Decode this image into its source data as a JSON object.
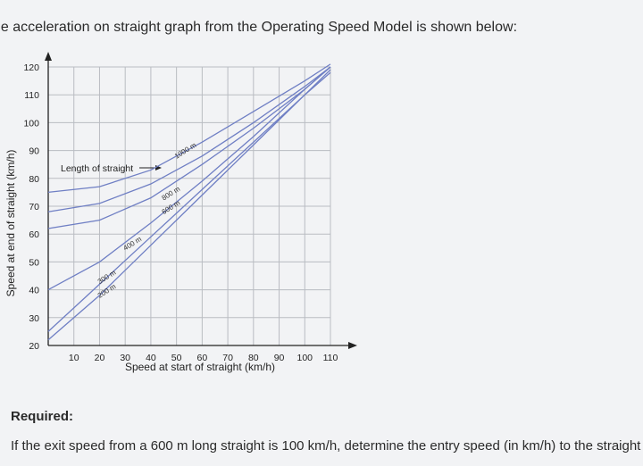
{
  "intro_text": "he acceleration on straight graph from the Operating Speed Model is shown below:",
  "required_label": "Required:",
  "question_text": "If the exit speed from a 600 m long straight is 100 km/h, determine the entry speed (in km/h) to the straight",
  "chart_data": {
    "type": "line",
    "title": "",
    "xlabel": "Speed at start of straight (km/h)",
    "ylabel": "Speed at end of straight (km/h)",
    "xlim": [
      0,
      110
    ],
    "ylim": [
      20,
      120
    ],
    "x_ticks": [
      10,
      20,
      30,
      40,
      50,
      60,
      70,
      80,
      90,
      100,
      110
    ],
    "y_ticks": [
      20,
      30,
      40,
      50,
      60,
      70,
      80,
      90,
      100,
      110,
      120
    ],
    "grid": true,
    "annotation": "Length of straight",
    "line_color": "#6f7fc4",
    "series": [
      {
        "name": "200 m",
        "label_at": [
          20,
          37
        ],
        "x": [
          0,
          20,
          40,
          60,
          80,
          100,
          110
        ],
        "y": [
          22,
          38,
          56,
          74,
          92,
          110,
          119
        ]
      },
      {
        "name": "300 m",
        "label_at": [
          20,
          42
        ],
        "x": [
          0,
          20,
          40,
          60,
          80,
          100,
          110
        ],
        "y": [
          25,
          42,
          59,
          76,
          93,
          110,
          118
        ]
      },
      {
        "name": "400 m",
        "label_at": [
          30,
          54
        ],
        "x": [
          0,
          20,
          40,
          60,
          80,
          100,
          110
        ],
        "y": [
          40,
          50,
          64,
          79,
          95,
          112,
          120
        ]
      },
      {
        "name": "600 m",
        "label_at": [
          45,
          67
        ],
        "x": [
          0,
          20,
          40,
          60,
          80,
          100,
          110
        ],
        "y": [
          62,
          65,
          73,
          85,
          98,
          112,
          120
        ]
      },
      {
        "name": "800 m",
        "label_at": [
          45,
          72
        ],
        "x": [
          0,
          20,
          40,
          60,
          80,
          100,
          110
        ],
        "y": [
          68,
          71,
          78,
          88,
          100,
          113,
          120
        ]
      },
      {
        "name": "1000 m",
        "label_at": [
          50,
          87
        ],
        "x": [
          0,
          20,
          40,
          60,
          80,
          100,
          110
        ],
        "y": [
          75,
          77,
          83,
          93,
          104,
          115,
          121
        ]
      }
    ]
  }
}
